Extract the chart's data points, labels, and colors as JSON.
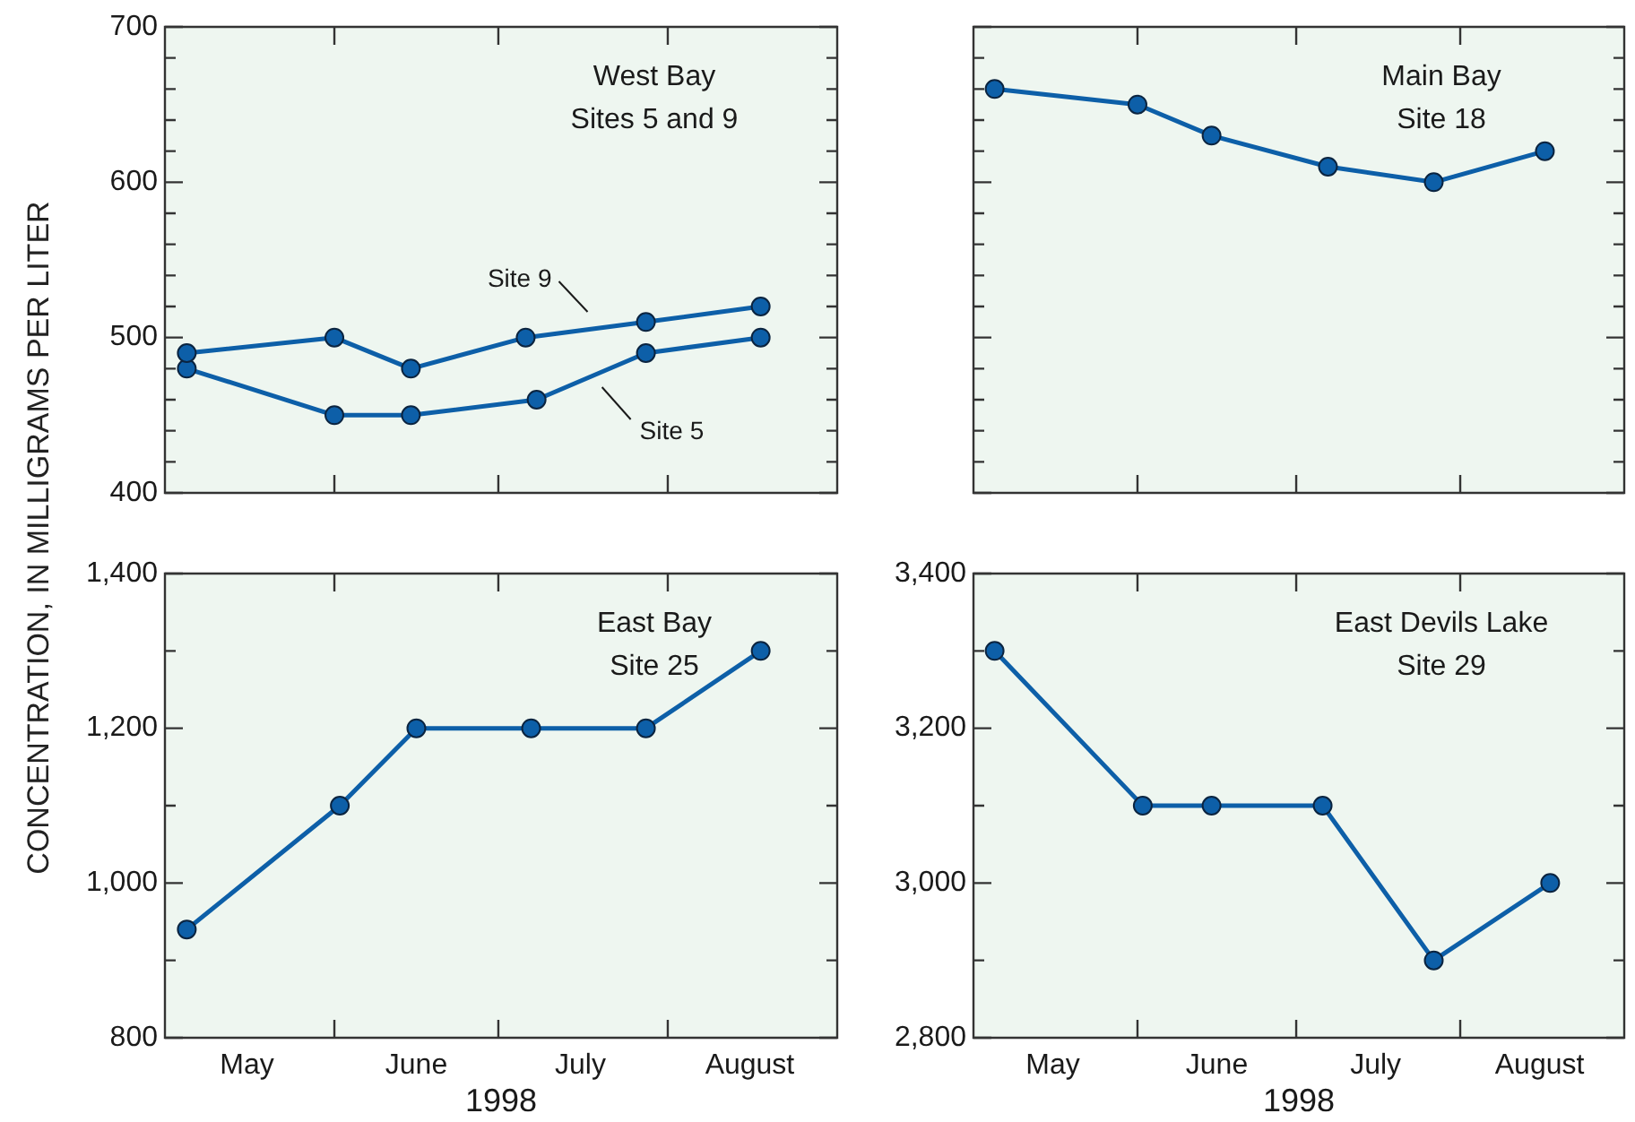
{
  "chart_data": [
    {
      "type": "line",
      "title": "West Bay",
      "subtitle": "Sites 5 and 9",
      "ylabel": "CONCENTRATION, IN MILLIGRAMS PER LITER",
      "x": [
        "1998-05-05",
        "1998-06-01",
        "1998-06-15",
        "1998-07-06",
        "1998-07-28",
        "1998-08-18"
      ],
      "series": [
        {
          "name": "Site 9",
          "color": "#0d5fa8",
          "values": [
            490,
            500,
            480,
            500,
            510,
            520
          ]
        },
        {
          "name": "Site 5",
          "color": "#0d5fa8",
          "x": [
            "1998-05-05",
            "1998-06-01",
            "1998-06-15",
            "1998-07-08",
            "1998-07-28",
            "1998-08-18"
          ],
          "values": [
            480,
            450,
            450,
            460,
            490,
            500
          ]
        }
      ],
      "xlim": [
        "1998-05-01",
        "1998-09-01"
      ],
      "xticks": [
        {
          "value": "1998-06-01",
          "label": null
        },
        {
          "value": "1998-07-01",
          "label": null
        },
        {
          "value": "1998-08-01",
          "label": null
        }
      ],
      "ylim": [
        400,
        700
      ],
      "yticks": [
        400,
        {
          "value": 420,
          "label": null
        },
        {
          "value": 440,
          "label": null
        },
        {
          "value": 460,
          "label": null
        },
        {
          "value": 480,
          "label": null
        },
        500,
        {
          "value": 520,
          "label": null
        },
        {
          "value": 540,
          "label": null
        },
        {
          "value": 560,
          "label": null
        },
        {
          "value": 580,
          "label": null
        },
        600,
        {
          "value": 620,
          "label": null
        },
        {
          "value": 640,
          "label": null
        },
        {
          "value": 660,
          "label": null
        },
        {
          "value": 680,
          "label": null
        },
        700
      ],
      "tick_labels": "y",
      "marker": "circle",
      "line_style": "solid"
    },
    {
      "type": "line",
      "title": "Main Bay",
      "subtitle": "Site 18",
      "x": [
        "1998-05-05",
        "1998-06-01",
        "1998-06-15",
        "1998-07-07",
        "1998-07-27",
        "1998-08-17"
      ],
      "series": [
        {
          "color": "#0d5fa8",
          "values": [
            660,
            650,
            630,
            610,
            600,
            620
          ]
        }
      ],
      "xlim": [
        "1998-05-01",
        "1998-09-01"
      ],
      "xticks": [
        {
          "value": "1998-06-01",
          "label": null
        },
        {
          "value": "1998-07-01",
          "label": null
        },
        {
          "value": "1998-08-01",
          "label": null
        }
      ],
      "ylim": [
        400,
        700
      ],
      "yticks": [
        400,
        {
          "value": 420,
          "label": null
        },
        {
          "value": 440,
          "label": null
        },
        {
          "value": 460,
          "label": null
        },
        {
          "value": 480,
          "label": null
        },
        500,
        {
          "value": 520,
          "label": null
        },
        {
          "value": 540,
          "label": null
        },
        {
          "value": 560,
          "label": null
        },
        {
          "value": 580,
          "label": null
        },
        600,
        {
          "value": 620,
          "label": null
        },
        {
          "value": 640,
          "label": null
        },
        {
          "value": 660,
          "label": null
        },
        {
          "value": 680,
          "label": null
        },
        700
      ],
      "tick_labels": false,
      "marker": "circle",
      "line_style": "solid"
    },
    {
      "type": "line",
      "title": "East Bay",
      "subtitle": "Site 25",
      "xlabel": "1998",
      "x": [
        "1998-05-05",
        "1998-06-02",
        "1998-06-16",
        "1998-07-07",
        "1998-07-28",
        "1998-08-18"
      ],
      "series": [
        {
          "color": "#0d5fa8",
          "values": [
            940,
            1100,
            1200,
            1200,
            1200,
            1300
          ]
        }
      ],
      "xlim": [
        "1998-05-01",
        "1998-09-01"
      ],
      "xticks": [
        {
          "value": "1998-05-16",
          "label": "May"
        },
        {
          "value": "1998-06-01",
          "label": null
        },
        {
          "value": "1998-06-16",
          "label": "June"
        },
        {
          "value": "1998-07-01",
          "label": null
        },
        {
          "value": "1998-07-16",
          "label": "July"
        },
        {
          "value": "1998-08-01",
          "label": null
        },
        {
          "value": "1998-08-16",
          "label": "August"
        }
      ],
      "ylim": [
        800,
        1400
      ],
      "yticks": [
        800,
        {
          "value": 900,
          "label": null
        },
        {
          "value": 1000,
          "label": "1,000"
        },
        {
          "value": 1100,
          "label": null
        },
        {
          "value": 1200,
          "label": "1,200"
        },
        {
          "value": 1300,
          "label": null
        },
        {
          "value": 1400,
          "label": "1,400"
        }
      ],
      "marker": "circle",
      "line_style": "solid"
    },
    {
      "type": "line",
      "title": "East Devils Lake",
      "subtitle": "Site 29",
      "xlabel": "1998",
      "x": [
        "1998-05-05",
        "1998-06-02",
        "1998-06-15",
        "1998-07-06",
        "1998-07-27",
        "1998-08-18"
      ],
      "series": [
        {
          "color": "#0d5fa8",
          "values": [
            3300,
            3100,
            3100,
            3100,
            2900,
            3000
          ]
        }
      ],
      "xlim": [
        "1998-05-01",
        "1998-09-01"
      ],
      "xticks": [
        {
          "value": "1998-05-16",
          "label": "May"
        },
        {
          "value": "1998-06-01",
          "label": null
        },
        {
          "value": "1998-06-16",
          "label": "June"
        },
        {
          "value": "1998-07-01",
          "label": null
        },
        {
          "value": "1998-07-16",
          "label": "July"
        },
        {
          "value": "1998-08-01",
          "label": null
        },
        {
          "value": "1998-08-16",
          "label": "August"
        }
      ],
      "ylim": [
        2800,
        3400
      ],
      "yticks": [
        {
          "value": 2800,
          "label": "2,800"
        },
        {
          "value": 2900,
          "label": null
        },
        {
          "value": 3000,
          "label": "3,000"
        },
        {
          "value": 3100,
          "label": null
        },
        {
          "value": 3200,
          "label": "3,200"
        },
        {
          "value": 3300,
          "label": null
        },
        {
          "value": 3400,
          "label": "3,400"
        }
      ],
      "marker": "circle",
      "line_style": "solid"
    }
  ]
}
